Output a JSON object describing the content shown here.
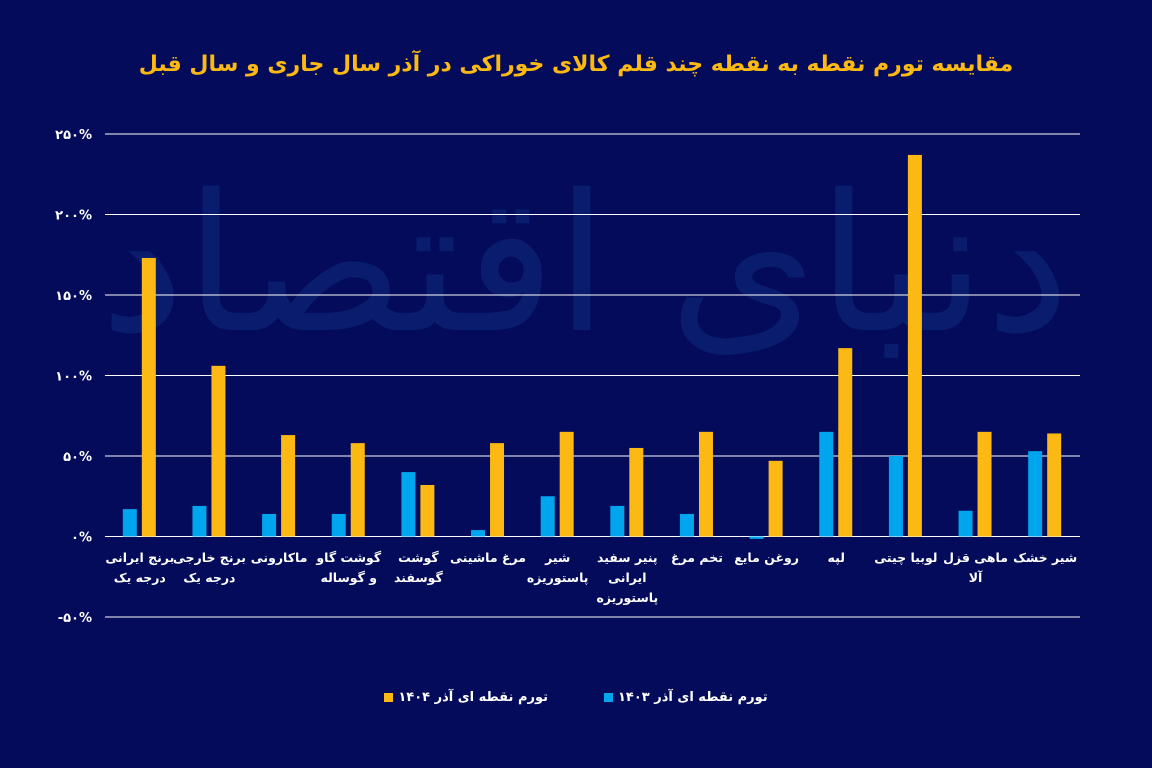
{
  "chart_data": {
    "type": "bar",
    "title": "مقایسه تورم نقطه به نقطه چند قلم کالای خوراکی در آذر سال جاری و سال قبل",
    "categories": [
      "برنج ایرانی\nدرجه یک",
      "برنج خارجی\nدرجه یک",
      "ماکارونی",
      "گوشت گاو\nو گوساله",
      "گوشت\nگوسفند",
      "مرغ ماشینی",
      "شیر\nپاستوریزه",
      "پنیر سفید\nایرانی\nپاستوریزه",
      "تخم مرغ",
      "روغن مایع",
      "لپه",
      "لوبیا چیتی",
      "ماهی قزل\nآلا",
      "شیر خشک"
    ],
    "series": [
      {
        "name": "تورم نقطه ای آذر ۱۴۰۳",
        "color": "#00a6ed",
        "values": [
          17,
          19,
          14,
          14,
          40,
          4,
          25,
          19,
          14,
          -1.5,
          65,
          50,
          16,
          53
        ]
      },
      {
        "name": "تورم نقطه ای آذر ۱۴۰۴",
        "color": "#fdb913",
        "values": [
          173,
          106,
          63,
          58,
          32,
          58,
          65,
          55,
          65,
          47,
          117,
          237,
          65,
          64
        ]
      }
    ],
    "ylim": [
      -50,
      250
    ],
    "yticks": [
      250,
      200,
      150,
      100,
      50,
      0,
      -50
    ],
    "ytick_labels": [
      "۲۵۰%",
      "۲۰۰%",
      "۱۵۰%",
      "۱۰۰%",
      "۵۰%",
      "۰%",
      "-۵۰%"
    ],
    "grid": true,
    "legend_position": "bottom",
    "background": "#030b5a"
  }
}
